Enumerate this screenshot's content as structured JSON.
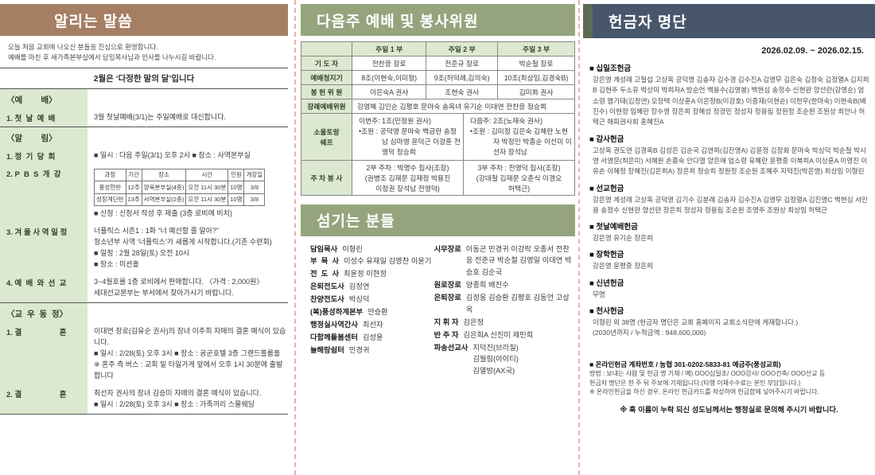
{
  "left": {
    "title": "알리는 말씀",
    "intro_line1": "오늘 처음 교회에 나오신 분들을 진심으로 환영합니다.",
    "intro_line2": "예배를 마친 후 새가족본부실에서 담임목사님과 인사를 나누시길 바랍니다.",
    "month_banner": "2월은 ‘다정한 말의 달’입니다",
    "worship": {
      "heading": "〈예        배〉",
      "item1_label": "1. 첫  날  예  배",
      "item1_text": "3월 첫날예배(3/1)는 주일예배로 대신합니다."
    },
    "notice": {
      "heading": "〈알        림〉",
      "item1_label": "1. 정  기  당  회",
      "item1_text": "■ 일시 : 다음 주일(3/1) 오후 2시      ■ 장소 : 사역본부실",
      "item2_label": "2. P  B  S  개  강",
      "pbs_table": {
        "headers": [
          "과정",
          "기간",
          "장소",
          "시간",
          "인원",
          "개강일"
        ],
        "rows": [
          [
            "풍성한반",
            "12주",
            "양육본부실(4층)",
            "오전 11시 30분",
            "10명",
            "3/8"
          ],
          [
            "성장계단반",
            "13주",
            "사역본부실(2층)",
            "오전 11시 30분",
            "10명",
            "3/8"
          ]
        ]
      },
      "pbs_note": "■ 신청 : 신청서 작성 후 제출 (3층 로비에 비치)",
      "item3_label": "3. 겨 울 사 역 일 정",
      "item3_text": "너플릭스 시즌1 : 1화 “너 예선할 줄 알아?”\n청소년부 사역 ‘너플릭스’가 새롭게 시작합니다.(기존 수련회)\n■ 일정 : 2월 28일(토) 오전 10시\n■ 장소 : 미션홀",
      "item4_label": "4. 예  배  와  선  교",
      "item4_text": "3~4월호를 1층 로비에서 판매합니다. 〈가격 : 2,000원〉\n세대선교본부는 부서에서 찾아가시기 바랍니다."
    },
    "family_news": {
      "heading": "〈교  우  동  정〉",
      "item1_label": "1. 결                  혼",
      "item1_text": "이대연 장로(김유순 권사)의 장녀 이주희 자매의 결혼 예식이 있습니다.\n■ 일시 : 2/28(토)  오후 3시      ■ 장소 : 공군호텔 3층 그랜드볼룸홀\n※ 혼주 측 버스 : 교회 밑 타일가게 앞에서 오후 1시 30분에 출발합니다",
      "item2_label": "2. 결                  혼",
      "item2_text": "최선자 권사의 장녀 김승미 자매의 결혼 예식이 있습니다.\n■ 일시 : 2/28(토)  오후 3시      ■ 장소 : 가족끼리 스몰웨딩"
    }
  },
  "mid": {
    "title": "다음주 예배 및 봉사위원",
    "table": {
      "col_headers": [
        "주일 1 부",
        "주일 2 부",
        "주일 3 부"
      ],
      "rows": [
        {
          "label": "기  도  자",
          "cells": [
            "전찬응 장로",
            "전준규 장로",
            "박순철 장로"
          ]
        },
        {
          "label": "예배청지기",
          "cells": [
            "8조(이현숙,이미정)",
            "9조(허덕례,김의숙)",
            "10조(최상임,김경숙B)"
          ]
        },
        {
          "label": "봉 헌 위 원",
          "cells": [
            "이은숙A 권사",
            "조현숙 권사",
            "김미화 권사"
          ]
        }
      ],
      "funeral_label": "장례예배위원",
      "funeral_text": "강영혜 김인순 김평호 문마숙 송옥녀 유기순 이대연 전찬응 정승희",
      "chef_label": "소울토랑\n쉐프",
      "chef_week1_title": "이번주: 1조(민정원 권사)",
      "chef_week1_members": "•조원 :  공덕영 문마숙 백금란 송정남 심마영 윤덕근 이광훈 전영덕 정승희",
      "chef_week2_title": "다음주: 2조(노재숙 권사)",
      "chef_week2_members": "•조원 :  김미정 김은숙 김혜란 노현자 박정민 박종순 이선미 이선자 장석남",
      "parking_label": "주 차 봉 사",
      "parking1_text": "2부 주차 : 박명수 집사(조장)\n(권병조 김재문 김재정 박용진\n이정권 장석남 전영덕)",
      "parking2_text": "3부 주차 : 전영덕 집사(조장)\n(강대철 김재문 오춘식 이경오\n허택근)"
    },
    "servants": {
      "title": "섬기는 분들",
      "left": [
        {
          "role": "담임목사",
          "names": "이형린"
        },
        {
          "role": "부  목  사",
          "names": "이성수 유재일 김영찬 이윤기"
        },
        {
          "role": "전  도  사",
          "names": "최윤정 이현정"
        },
        {
          "role": "은퇴전도사",
          "names": "김정연"
        },
        {
          "role": "찬양전도사",
          "names": "박싱덕"
        },
        {
          "role": "(복)풍성하계본부",
          "names": "안승환"
        },
        {
          "role": "행정실사역간사",
          "names": "최선자"
        },
        {
          "role": "다함께돌봄센터",
          "names": "김성윤"
        },
        {
          "role": "늘해랑쉼터",
          "names": "민경귀"
        }
      ],
      "right": [
        {
          "role": "시무장로",
          "names": "이동곤 민경귀 이강락 오종서 전찬응 전준규 박순철 김영일 이대연 박승호 김순국"
        },
        {
          "role": "원로장로",
          "names": "양종희 배진수"
        },
        {
          "role": "은퇴장로",
          "names": "김정웅 김승환 김평호 김동언 고상옥"
        },
        {
          "role": "지 휘 자",
          "names": "김은정"
        },
        {
          "role": "반 주 자",
          "names": "김은희A 신진미 제민희"
        },
        {
          "role": "파송선교사",
          "names": "지덕진(브라질)\n김월림(아이티)\n김열방(AX국)"
        }
      ]
    }
  },
  "right": {
    "title": "헌금자 명단",
    "date_range": "2026.02.09.  ~  2026.02.15.",
    "sections": [
      {
        "title": "■ 십일조헌금",
        "body": "강은영 계성례 고철섭 고상옥 공덕영 김송자 김수경 김수진A 김영무 김은숙 김정숙 김정열A 김지희B 김현주 두소유 박상미 박희자A 방순언 백용수(김영봉) 백현심 송정수 신현완 양선란(강영순) 엄소령 염기태(김정연) 오장택 이상훈A 이은정B(이강호) 이중재(이현순) 이한우(한마숙) 이현숙B(배진수) 이현정 임혜란 장수영 장은희 장혜성 정광민 정성자 정용림 정원정 조순원 조원상 최안나 허택근 해피권사회 홍혜진A"
      },
      {
        "title": "■ 감사헌금",
        "body": "고상옥 권도연 김경옥B 김성은 김순국 김연희(김잔영A) 김윤정 김정화 문마숙 박싱덕 박순철 박시영 서영문(최은미) 서혜원 손종숙 안다엘 양은애 엄소령 유혜란 윤평중 이복희A 이상훈A 이영진 이유손 이혜정 장혜진(김은희A) 장은희 정승희 정원정 조순원 조혜주 지덕진(박은영) 최상임 이형린"
      },
      {
        "title": "■ 선교헌금",
        "body": "강은영 계성례 고상옥 공덕영 김기수 김분례 김송자 김수진A 김영무 김정열A 김진영C 백현심 서인용 송정수 신현완 양선란 장은희 정성자 정용림 조순원 조영주 조원상 최상임 허택근"
      },
      {
        "title": "■ 첫날예배헌금",
        "body": "강은영 유기순 장은희"
      },
      {
        "title": "■ 장학헌금",
        "body": "강은영 윤평중 장은희"
      },
      {
        "title": "■ 신년헌금",
        "body": "무명"
      },
      {
        "title": "■ 천사헌금",
        "body": "이형린 외 38명 (헌금자 명단은 교회 홈페이지 교회소식란에 게재합니다.)\n(2030년까지 /  누적금액 : 948,600,000)"
      }
    ],
    "online": {
      "line1": "■ 온라인헌금        계좌번호 / 농협 301-0202-5833-81  예금주(풍성교회)",
      "line2": "방법 : 보내는 사람 및 헌금 명 기재  / 예) OOO십일조/ OOO감사/ OOO건축/ OOO선교 등",
      "line3": "헌금자 명단은 한 주 뒤 주보에 기재됩니다.(타행 이체수수료는 본인 부담입니다.)",
      "line4": "※ 온라인헌금을 하신 경우, 온라인 헌금카드를 작성하여 헌금함에 넣어주시기 바랍니다."
    },
    "footer_note": "※ 혹 이름이 누락 되신 성도님께서는 행정실로 문의해 주시기 바랍니다."
  }
}
